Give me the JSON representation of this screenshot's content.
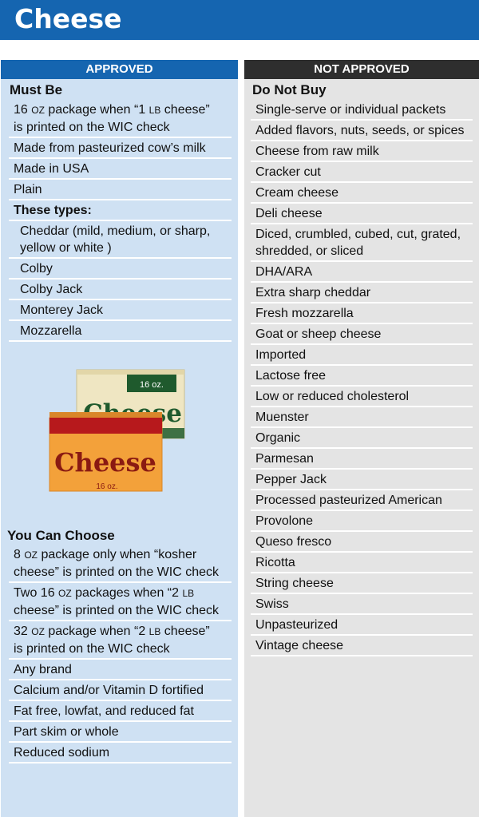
{
  "title": "Cheese",
  "approved": {
    "header": "APPROVED",
    "must_be": {
      "heading": "Must Be",
      "items": [
        "Made from pasteurized cow’s milk",
        "Made in USA",
        "Plain"
      ],
      "first_item": {
        "p1": "16 ",
        "oz": "OZ",
        "p2": " package when “1 ",
        "lb": "LB",
        "p3": " cheese”",
        "line2": "is printed on the WIC check"
      }
    },
    "types": {
      "heading": "These types:",
      "items": [
        "Cheddar (mild, medium, or sharp, yellow or white )",
        "Colby",
        "Colby Jack",
        "Monterey Jack",
        "Mozzarella"
      ]
    },
    "illustration": {
      "back_label": "16 oz.",
      "back_word": "Cheese",
      "front_word": "Cheese",
      "front_label": "16 oz."
    },
    "choose": {
      "heading": "You Can Choose",
      "special": [
        {
          "a": "8 ",
          "oz": "OZ",
          "b": " package only when “kosher",
          "c": "cheese” is printed on the WIC check"
        },
        {
          "a": "Two 16 ",
          "oz": "OZ",
          "b": " packages when “2 ",
          "lb": "LB",
          "b2": "",
          "c": "cheese” is printed on the WIC check"
        },
        {
          "a": "32 ",
          "oz": "OZ",
          "b": " package when “2 ",
          "lb": "LB",
          "b2": " cheese”",
          "c": "is printed on the WIC check"
        }
      ],
      "items": [
        "Any brand",
        "Calcium and/or Vitamin D fortified",
        "Fat free, lowfat, and reduced fat",
        "Part skim or whole",
        "Reduced sodium"
      ]
    }
  },
  "not_approved": {
    "header": "NOT APPROVED",
    "heading": "Do Not Buy",
    "items": [
      "Single-serve or individual packets",
      "Added flavors, nuts, seeds, or spices",
      "Cheese from raw milk",
      "Cracker cut",
      "Cream cheese",
      "Deli cheese",
      "Diced, crumbled, cubed, cut, grated, shredded, or sliced",
      "DHA/ARA",
      "Extra sharp cheddar",
      "Fresh mozzarella",
      "Goat or sheep cheese",
      "Imported",
      "Lactose free",
      "Low or reduced cholesterol",
      "Muenster",
      "Organic",
      "Parmesan",
      "Pepper Jack",
      "Processed pasteurized American",
      "Provolone",
      "Queso fresco",
      "Ricotta",
      "String cheese",
      "Swiss",
      "Unpasteurized",
      "Vintage cheese"
    ]
  },
  "colors": {
    "title_blue": "#1565b0",
    "approved_bg": "#cfe1f3",
    "not_approved_bg": "#e4e4e4",
    "not_approved_header": "#2e2e2e",
    "cheese_back": "#efe6c2",
    "cheese_green": "#1f5a2d",
    "cheese_front": "#f3a13a",
    "cheese_red": "#b7191c"
  }
}
